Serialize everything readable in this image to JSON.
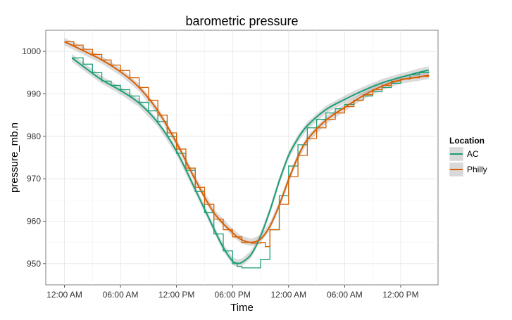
{
  "chart_data": {
    "type": "line",
    "title": "barometric pressure",
    "xlabel": "Time",
    "ylabel": "pressure_mb.n",
    "x_unit": "hours",
    "xlim": [
      -2,
      40
    ],
    "ylim": [
      945,
      1005
    ],
    "x_ticks": [
      {
        "value": 0,
        "label": "12:00 AM"
      },
      {
        "value": 6,
        "label": "06:00 AM"
      },
      {
        "value": 12,
        "label": "12:00 PM"
      },
      {
        "value": 18,
        "label": "06:00 PM"
      },
      {
        "value": 24,
        "label": "12:00 AM"
      },
      {
        "value": 30,
        "label": "06:00 AM"
      },
      {
        "value": 36,
        "label": "12:00 PM"
      }
    ],
    "y_ticks": [
      950,
      960,
      970,
      980,
      990,
      1000
    ],
    "grid": true,
    "background": "#ffffff",
    "legend": {
      "title": "Location",
      "position": "right"
    },
    "series": [
      {
        "name": "AC",
        "color": "#1b9e77",
        "style": "step",
        "x": [
          0.8,
          2,
          3,
          4,
          5,
          6,
          7,
          8,
          9,
          10,
          11,
          12,
          13,
          14,
          15,
          16,
          17,
          18,
          18.5,
          19,
          20,
          21,
          22,
          23,
          24,
          25,
          26,
          27,
          28,
          29,
          30,
          31,
          32,
          33,
          34,
          35,
          36,
          37,
          38,
          39
        ],
        "values": [
          998.5,
          997,
          995,
          993,
          992,
          991,
          989.5,
          988,
          986,
          983.5,
          980,
          976,
          972,
          967,
          962,
          957,
          953,
          950,
          949.3,
          949,
          949,
          951,
          958,
          966,
          973,
          978,
          982,
          984,
          985.5,
          986.5,
          987.5,
          988.5,
          989.5,
          990.5,
          991.5,
          992.5,
          993.5,
          994.5,
          995,
          995.3
        ]
      },
      {
        "name": "AC smooth",
        "color": "#1b9e77",
        "style": "smooth",
        "x": [
          0.8,
          2,
          4,
          6,
          8,
          10,
          12,
          14,
          16,
          17,
          18,
          18.5,
          19,
          20,
          21,
          22,
          23,
          24,
          25,
          26,
          28,
          30,
          32,
          34,
          36,
          38,
          39
        ],
        "values": [
          998.5,
          996.5,
          993.3,
          990.8,
          987.8,
          983.2,
          976.5,
          967.5,
          958.2,
          953.8,
          950.6,
          950.1,
          950.3,
          952.2,
          956.5,
          962.5,
          969.5,
          975.5,
          979.5,
          982.5,
          986.3,
          988.7,
          990.8,
          992.6,
          993.9,
          995.1,
          995.6
        ]
      },
      {
        "name": "Philly",
        "color": "#d95f02",
        "style": "step",
        "x": [
          0,
          1,
          2,
          3,
          4,
          5,
          6,
          7,
          8,
          9,
          10,
          11,
          12,
          13,
          14,
          15,
          16,
          17,
          18,
          19,
          20,
          21,
          21.5,
          22,
          23,
          24,
          25,
          26,
          27,
          28,
          29,
          30,
          31,
          32,
          33,
          34,
          35,
          36,
          37,
          38,
          39
        ],
        "values": [
          1002.3,
          1001.5,
          1000.5,
          999.3,
          998,
          996.8,
          995.5,
          993.8,
          991.5,
          988.5,
          985,
          980.8,
          977,
          972.5,
          968,
          964,
          960.5,
          958,
          956.3,
          955,
          954.8,
          955,
          954,
          958,
          964,
          970.5,
          975.5,
          979.5,
          982,
          984,
          985.5,
          987,
          988.5,
          989.8,
          991,
          992,
          993,
          993.5,
          993.8,
          994.1,
          994.5
        ]
      },
      {
        "name": "Philly smooth",
        "color": "#d95f02",
        "style": "smooth",
        "x": [
          0,
          2,
          4,
          6,
          8,
          10,
          12,
          14,
          16,
          18,
          19,
          20,
          21,
          22,
          23,
          24,
          25,
          26,
          28,
          30,
          32,
          34,
          36,
          38,
          39
        ],
        "values": [
          1002.3,
          1000.2,
          998,
          995.2,
          991.5,
          986,
          978.5,
          969.8,
          962,
          957.3,
          955.6,
          955,
          955.8,
          958.8,
          963.8,
          969.8,
          975.2,
          979.2,
          983.8,
          986.8,
          989.6,
          991.8,
          993.3,
          994,
          994.4
        ]
      }
    ]
  }
}
